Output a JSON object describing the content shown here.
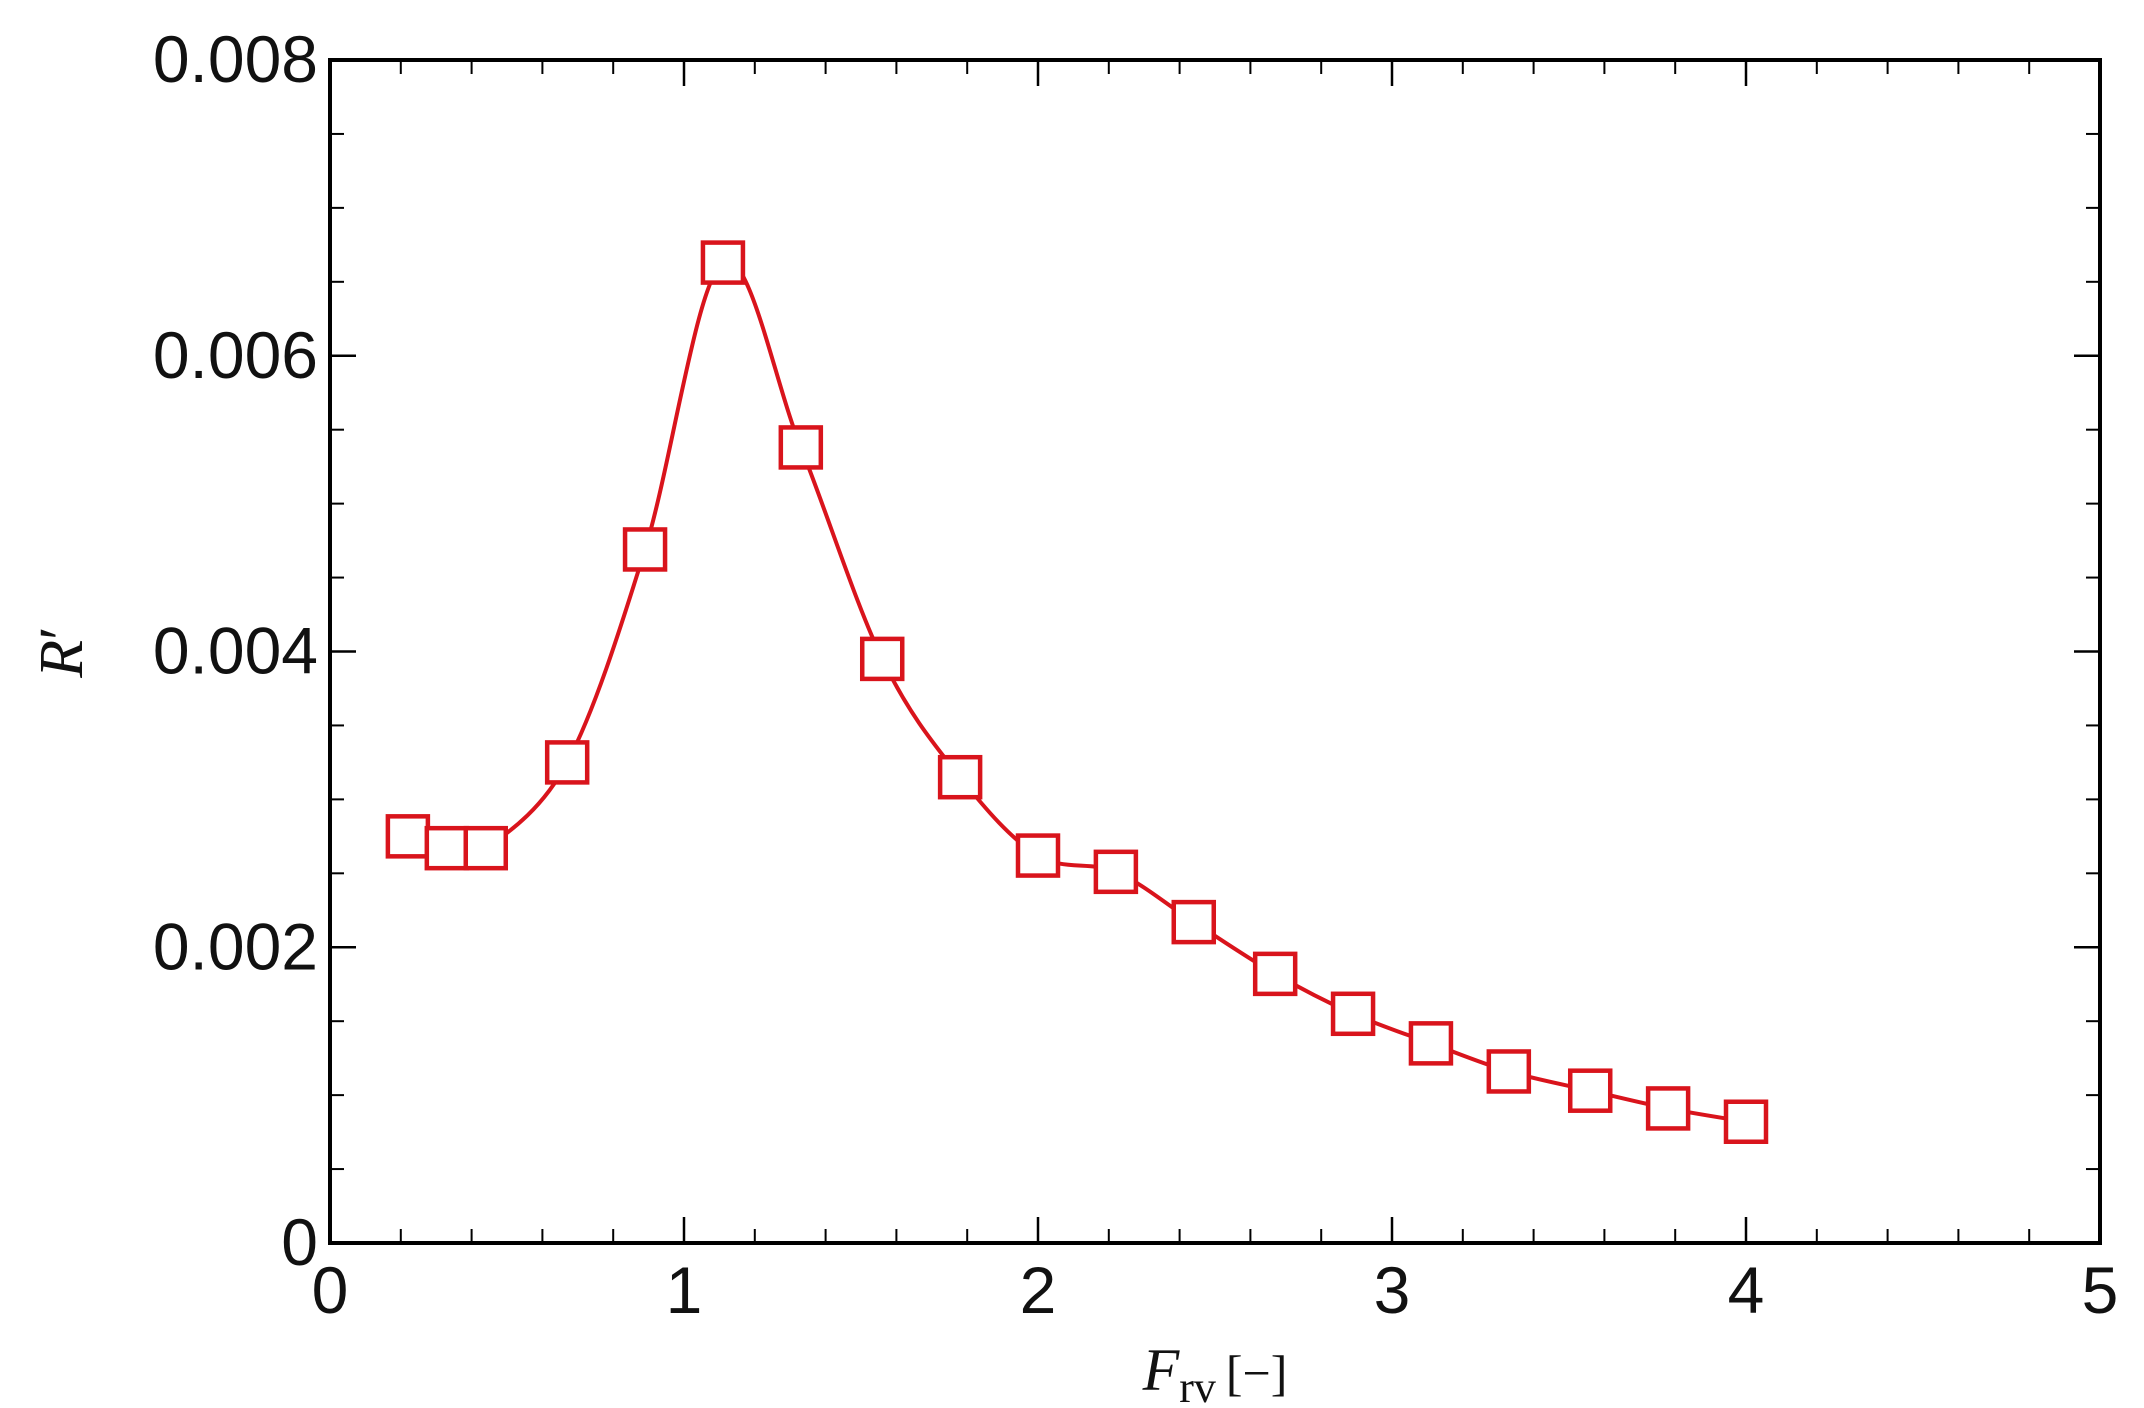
{
  "chart_data": {
    "type": "line",
    "title": "",
    "xlabel": "F_rv [−]",
    "xlabel_parts": {
      "symbol": "F",
      "subscript": "rv",
      "unit": "[−]"
    },
    "ylabel": "R′",
    "ylabel_parts": {
      "symbol": "R",
      "prime": "′"
    },
    "xlim": [
      0,
      5
    ],
    "ylim": [
      0,
      0.008
    ],
    "xticks": [
      0,
      1,
      2,
      3,
      4,
      5
    ],
    "xtick_labels": [
      "0",
      "1",
      "2",
      "3",
      "4",
      "5"
    ],
    "yticks": [
      0,
      0.002,
      0.004,
      0.006,
      0.008
    ],
    "ytick_labels": [
      "0",
      "0.002",
      "0.004",
      "0.006",
      "0.008"
    ],
    "x_minor_step": 0.2,
    "y_minor_step": 0.0005,
    "grid": false,
    "legend": "none",
    "series": [
      {
        "marker": "square-open",
        "color": "#d9141c",
        "x": [
          0.22,
          0.33,
          0.44,
          0.67,
          0.89,
          1.11,
          1.33,
          1.56,
          1.78,
          2.0,
          2.22,
          2.44,
          2.67,
          2.89,
          3.11,
          3.33,
          3.56,
          3.78,
          4.0
        ],
        "y": [
          0.00275,
          0.00267,
          0.00267,
          0.00325,
          0.00469,
          0.00663,
          0.00538,
          0.00395,
          0.00315,
          0.00262,
          0.00251,
          0.00217,
          0.00182,
          0.00155,
          0.00135,
          0.00116,
          0.00103,
          0.00091,
          0.00082
        ]
      }
    ]
  }
}
